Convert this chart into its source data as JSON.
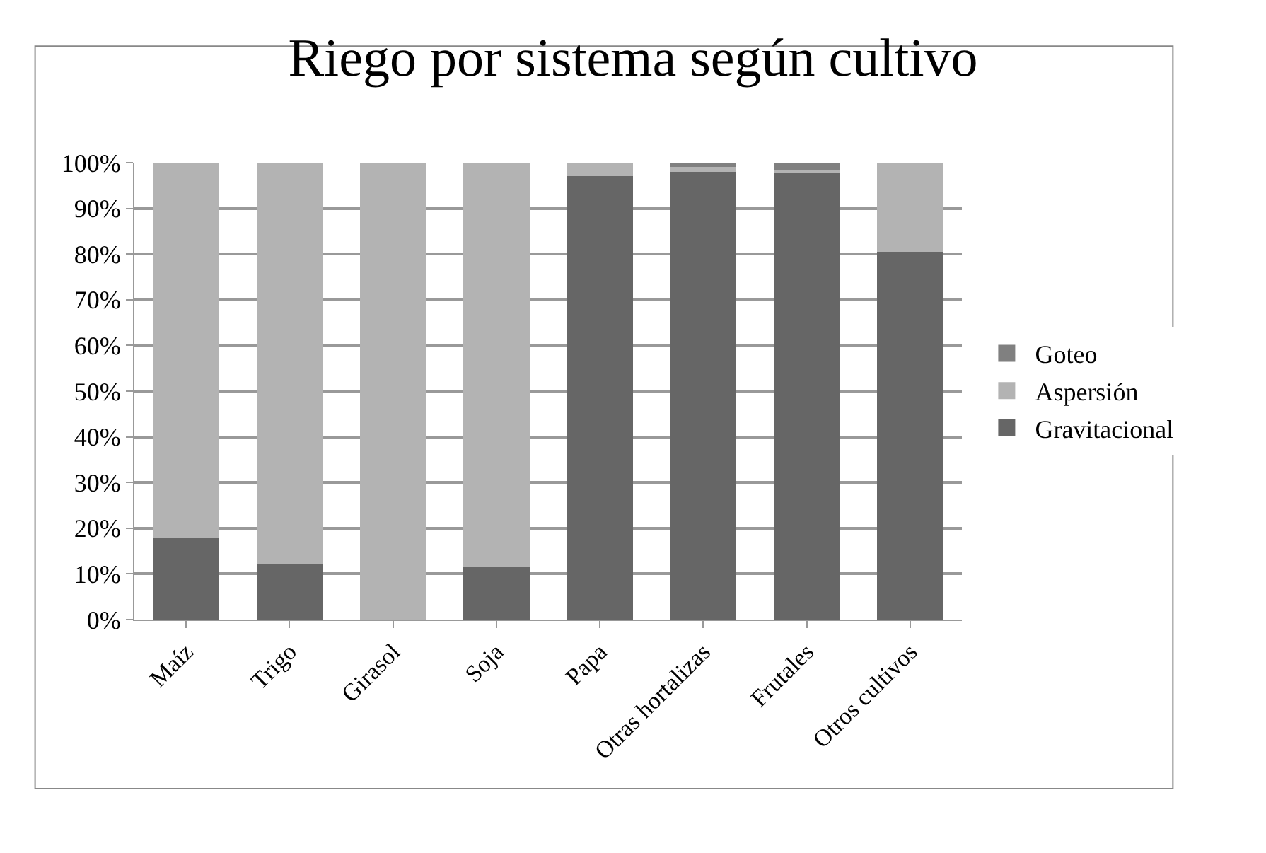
{
  "chart_data": {
    "type": "bar",
    "title": "Riego por sistema según cultivo",
    "categories": [
      "Maíz",
      "Trigo",
      "Girasol",
      "Soja",
      "Papa",
      "Otras hortalizas",
      "Frutales",
      "Otros cultivos"
    ],
    "stacked": true,
    "series": [
      {
        "name": "Gravitacional",
        "color": "#666666",
        "values": [
          18,
          12,
          0,
          11.5,
          97,
          98,
          98,
          80.5
        ]
      },
      {
        "name": "Aspersión",
        "color": "#b3b3b3",
        "values": [
          82,
          88,
          100,
          88.5,
          3,
          1,
          0.5,
          19.5
        ]
      },
      {
        "name": "Goteo",
        "color": "#808080",
        "values": [
          0,
          0,
          0,
          0,
          0,
          1,
          1.5,
          0
        ]
      }
    ],
    "ylim": [
      0,
      100
    ],
    "yticks": [
      {
        "value": 0,
        "label": "0%"
      },
      {
        "value": 10,
        "label": "10%"
      },
      {
        "value": 20,
        "label": "20%"
      },
      {
        "value": 30,
        "label": "30%"
      },
      {
        "value": 40,
        "label": "40%"
      },
      {
        "value": 50,
        "label": "50%"
      },
      {
        "value": 60,
        "label": "60%"
      },
      {
        "value": 70,
        "label": "70%"
      },
      {
        "value": 80,
        "label": "80%"
      },
      {
        "value": 90,
        "label": "90%"
      },
      {
        "value": 100,
        "label": "100%"
      }
    ],
    "grid": "y",
    "legend": "right"
  }
}
